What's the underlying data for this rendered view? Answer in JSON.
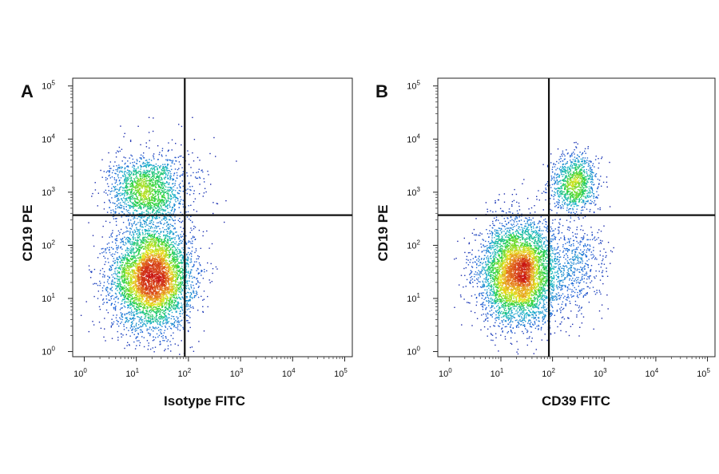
{
  "chart_data": [
    {
      "type": "scatter",
      "subtype": "flow-cytometry-density-dot-plot",
      "panel_label": "A",
      "xlabel": "Isotype FITC",
      "ylabel": "CD19 PE",
      "x_scale": "log",
      "y_scale": "log",
      "xlim": [
        0.6,
        140000
      ],
      "ylim": [
        0.8,
        140000
      ],
      "tick_values": [
        1,
        10,
        100,
        1000,
        10000,
        100000
      ],
      "tick_labels": [
        {
          "base": "10",
          "exp": "0"
        },
        {
          "base": "10",
          "exp": "1"
        },
        {
          "base": "10",
          "exp": "2"
        },
        {
          "base": "10",
          "exp": "3"
        },
        {
          "base": "10",
          "exp": "4"
        },
        {
          "base": "10",
          "exp": "5"
        }
      ],
      "quadrant_gate": {
        "x": 85,
        "y": 370
      },
      "populations": [
        {
          "name": "main",
          "x_center": 20,
          "y_center": 25,
          "x_spread_decades": 0.38,
          "y_spread_decades": 0.48,
          "count": 5200
        },
        {
          "name": "upper",
          "x_center": 15,
          "y_center": 1100,
          "x_spread_decades": 0.35,
          "y_spread_decades": 0.32,
          "count": 1700
        },
        {
          "name": "scattered",
          "x_center": 60,
          "y_center": 2000,
          "x_spread_decades": 0.4,
          "y_spread_decades": 0.5,
          "count": 140
        }
      ],
      "grid": false,
      "legend": "none"
    },
    {
      "type": "scatter",
      "subtype": "flow-cytometry-density-dot-plot",
      "panel_label": "B",
      "xlabel": "CD39 FITC",
      "ylabel": "CD19 PE",
      "x_scale": "log",
      "y_scale": "log",
      "xlim": [
        0.6,
        140000
      ],
      "ylim": [
        0.8,
        140000
      ],
      "tick_values": [
        1,
        10,
        100,
        1000,
        10000,
        100000
      ],
      "tick_labels": [
        {
          "base": "10",
          "exp": "0"
        },
        {
          "base": "10",
          "exp": "1"
        },
        {
          "base": "10",
          "exp": "2"
        },
        {
          "base": "10",
          "exp": "3"
        },
        {
          "base": "10",
          "exp": "4"
        },
        {
          "base": "10",
          "exp": "5"
        }
      ],
      "quadrant_gate": {
        "x": 85,
        "y": 370
      },
      "populations": [
        {
          "name": "main",
          "x_center": 22,
          "y_center": 30,
          "x_spread_decades": 0.38,
          "y_spread_decades": 0.48,
          "count": 5200
        },
        {
          "name": "upper-right",
          "x_center": 260,
          "y_center": 1500,
          "x_spread_decades": 0.22,
          "y_spread_decades": 0.28,
          "count": 1100
        },
        {
          "name": "lower-right",
          "x_center": 300,
          "y_center": 40,
          "x_spread_decades": 0.25,
          "y_spread_decades": 0.45,
          "count": 450
        }
      ],
      "grid": false,
      "legend": "none"
    }
  ],
  "colormap": [
    "#1a1aa0",
    "#1e64d8",
    "#18b4c8",
    "#28d23c",
    "#e6e61e",
    "#e6781e",
    "#c81414"
  ]
}
